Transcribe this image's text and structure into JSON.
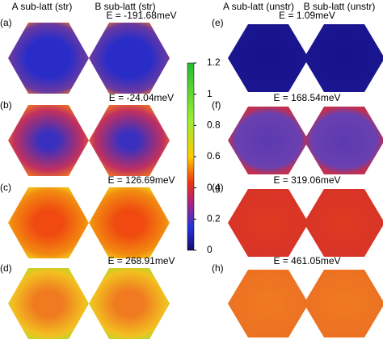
{
  "chart_data": {
    "type": "heatmap",
    "column_headers": [
      "A sub-latt (str)",
      "B sub-latt (str)",
      "A sub-latt (unstr)",
      "B sub-latt (unstr)"
    ],
    "panels": [
      {
        "label": "(a)",
        "title": "E = -191.68meV"
      },
      {
        "label": "(b)",
        "title": "E = -24.04meV"
      },
      {
        "label": "(c)",
        "title": "E = 126.69meV"
      },
      {
        "label": "(d)",
        "title": "E = 268.91meV"
      },
      {
        "label": "(e)",
        "title": "E = 1.09meV"
      },
      {
        "label": "(f)",
        "title": "E = 168.54meV"
      },
      {
        "label": "(g)",
        "title": "E = 319.06meV"
      },
      {
        "label": "(h)",
        "title": "E = 461.05meV"
      }
    ],
    "colorbar": {
      "lim": [
        0,
        1.2
      ],
      "ticks": [
        0,
        0.2,
        0.4,
        0.6,
        0.8,
        1,
        1.2
      ]
    }
  }
}
